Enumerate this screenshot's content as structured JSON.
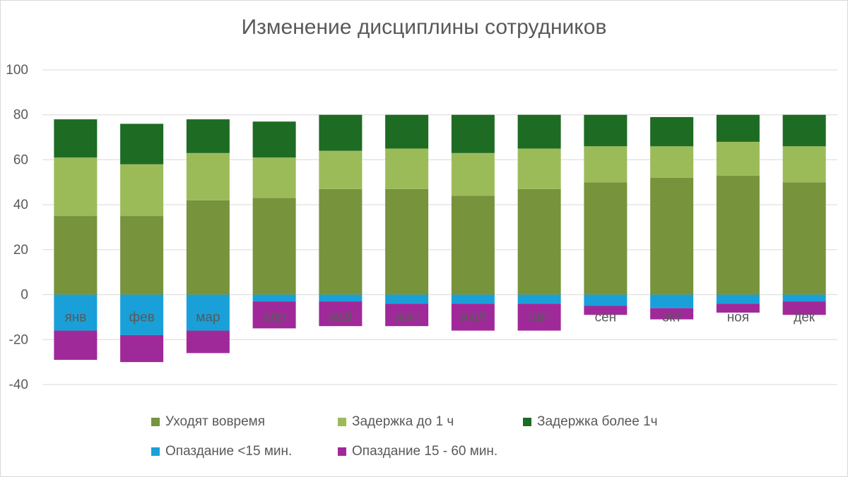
{
  "chart_data": {
    "type": "bar",
    "stacked": true,
    "title": "Изменение дисциплины сотрудников",
    "xlabel": "",
    "ylabel": "",
    "ylim": [
      -40,
      100
    ],
    "yticks": [
      100,
      80,
      60,
      40,
      20,
      0,
      -20,
      -40
    ],
    "grid": true,
    "legend_position": "bottom",
    "categories": [
      "янв",
      "фев",
      "мар",
      "апр",
      "май",
      "июн",
      "июл",
      "авг",
      "сен",
      "окт",
      "ноя",
      "дек"
    ],
    "series": [
      {
        "name": "Уходят вовремя",
        "color": "#77933c",
        "values": [
          35,
          35,
          42,
          43,
          47,
          47,
          44,
          47,
          50,
          52,
          53,
          50
        ]
      },
      {
        "name": "Задержка до 1 ч",
        "color": "#9bbb59",
        "values": [
          26,
          23,
          21,
          18,
          17,
          18,
          19,
          18,
          16,
          14,
          15,
          16
        ]
      },
      {
        "name": "Задержка более 1ч",
        "color": "#1e6b24",
        "values": [
          17,
          18,
          15,
          16,
          16,
          15,
          17,
          15,
          14,
          13,
          12,
          14
        ]
      },
      {
        "name": "Опаздание  <15 мин.",
        "color": "#1aa0d8",
        "values": [
          -16,
          -18,
          -16,
          -3,
          -3,
          -4,
          -4,
          -4,
          -5,
          -6,
          -4,
          -3
        ]
      },
      {
        "name": "Опаздание 15 - 60 мин.",
        "color": "#a0299a",
        "values": [
          -13,
          -12,
          -10,
          -12,
          -11,
          -10,
          -12,
          -12,
          -4,
          -5,
          -4,
          -6
        ]
      }
    ]
  }
}
